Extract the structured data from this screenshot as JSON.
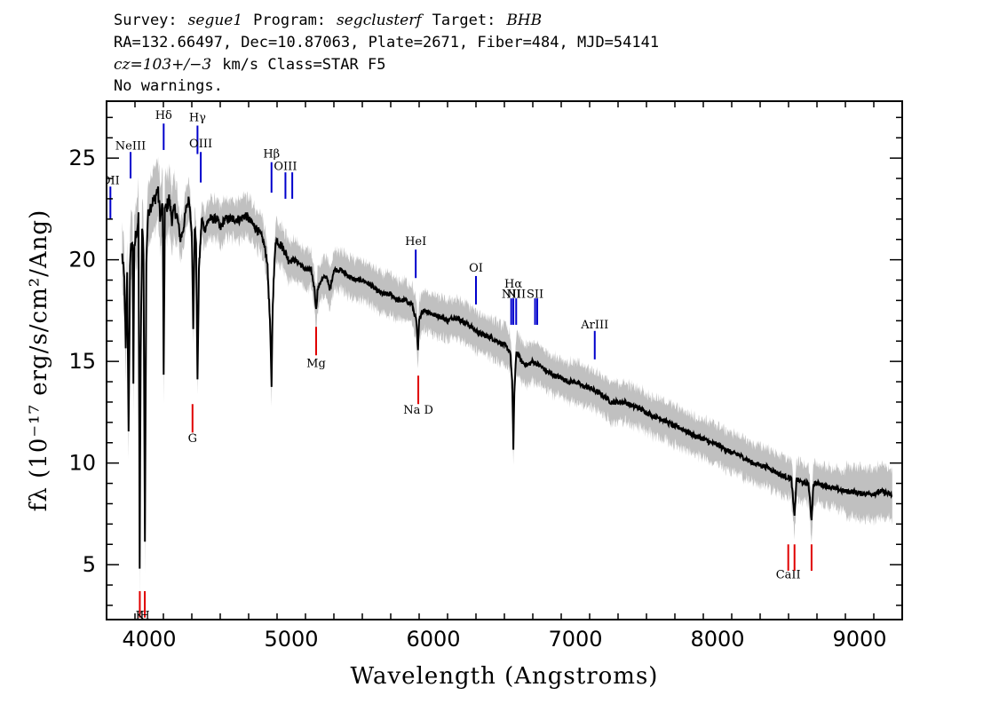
{
  "header": {
    "line1": {
      "survey_label": "Survey:",
      "survey": "segue1",
      "program_label": "Program:",
      "program": "segclusterf",
      "target_label": "Target:",
      "target": "BHB"
    },
    "line2": "RA=132.66497, Dec=10.87063, Plate=2671, Fiber=484, MJD=54141",
    "line3": {
      "redshift": "cz=103+/−3",
      "rest": "km/s Class=STAR F5"
    },
    "line4": "No warnings."
  },
  "chart_data": {
    "type": "line",
    "xlabel": "Wavelength (Angstroms)",
    "ylabel": "fλ (10⁻¹⁷ erg/s/cm²/Ang)",
    "xlim": [
      3700,
      9300
    ],
    "ylim": [
      2.3,
      27.8
    ],
    "x_ticks": [
      4000,
      5000,
      6000,
      7000,
      8000,
      9000
    ],
    "y_ticks": [
      5,
      10,
      15,
      20,
      25
    ],
    "colors": {
      "spectrum": "#000000",
      "error_band": "#c0c0c0",
      "emission": "#0000cc",
      "absorption": "#e00000"
    },
    "series": [
      {
        "points": [
          [
            3810,
            20.2
          ],
          [
            3825,
            19.0
          ],
          [
            3835,
            15.5
          ],
          [
            3845,
            19.5
          ],
          [
            3855,
            11.5
          ],
          [
            3865,
            19.5
          ],
          [
            3875,
            21.0
          ],
          [
            3883,
            20.5
          ],
          [
            3889,
            14.0
          ],
          [
            3895,
            20.5
          ],
          [
            3905,
            21.2
          ],
          [
            3915,
            21.5
          ],
          [
            3925,
            22.0
          ],
          [
            3933,
            5.0
          ],
          [
            3940,
            15.0
          ],
          [
            3950,
            21.5
          ],
          [
            3960,
            20.5
          ],
          [
            3970,
            6.0
          ],
          [
            3980,
            20.0
          ],
          [
            3990,
            22.0
          ],
          [
            4000,
            22.5
          ],
          [
            4020,
            22.8
          ],
          [
            4040,
            23.0
          ],
          [
            4060,
            23.5
          ],
          [
            4080,
            22.0
          ],
          [
            4095,
            22.8
          ],
          [
            4102,
            14.0
          ],
          [
            4110,
            22.5
          ],
          [
            4120,
            22.5
          ],
          [
            4140,
            23.0
          ],
          [
            4160,
            22.0
          ],
          [
            4180,
            22.5
          ],
          [
            4200,
            22.0
          ],
          [
            4220,
            21.0
          ],
          [
            4240,
            21.5
          ],
          [
            4260,
            22.5
          ],
          [
            4280,
            23.0
          ],
          [
            4300,
            21.5
          ],
          [
            4310,
            16.5
          ],
          [
            4320,
            21.5
          ],
          [
            4330,
            21.0
          ],
          [
            4340,
            13.9
          ],
          [
            4350,
            19.5
          ],
          [
            4370,
            22.0
          ],
          [
            4390,
            21.5
          ],
          [
            4420,
            22.0
          ],
          [
            4450,
            22.0
          ],
          [
            4480,
            22.0
          ],
          [
            4500,
            21.5
          ],
          [
            4530,
            22.0
          ],
          [
            4560,
            22.0
          ],
          [
            4600,
            22.0
          ],
          [
            4640,
            22.0
          ],
          [
            4680,
            22.2
          ],
          [
            4720,
            21.8
          ],
          [
            4760,
            21.5
          ],
          [
            4800,
            21.0
          ],
          [
            4830,
            20.0
          ],
          [
            4850,
            17.0
          ],
          [
            4861,
            13.8
          ],
          [
            4870,
            18.0
          ],
          [
            4890,
            21.0
          ],
          [
            4920,
            20.8
          ],
          [
            4950,
            20.5
          ],
          [
            4980,
            20.0
          ],
          [
            5020,
            20.0
          ],
          [
            5060,
            19.8
          ],
          [
            5100,
            19.5
          ],
          [
            5140,
            19.5
          ],
          [
            5165,
            18.5
          ],
          [
            5175,
            17.5
          ],
          [
            5185,
            18.5
          ],
          [
            5210,
            19.0
          ],
          [
            5250,
            19.2
          ],
          [
            5270,
            18.5
          ],
          [
            5300,
            19.5
          ],
          [
            5350,
            19.5
          ],
          [
            5400,
            19.2
          ],
          [
            5450,
            19.0
          ],
          [
            5500,
            19.0
          ],
          [
            5550,
            18.8
          ],
          [
            5600,
            18.5
          ],
          [
            5650,
            18.3
          ],
          [
            5700,
            18.3
          ],
          [
            5750,
            18.0
          ],
          [
            5800,
            18.0
          ],
          [
            5850,
            17.8
          ],
          [
            5880,
            17.0
          ],
          [
            5892,
            15.5
          ],
          [
            5900,
            17.0
          ],
          [
            5920,
            17.5
          ],
          [
            5950,
            17.5
          ],
          [
            6000,
            17.3
          ],
          [
            6050,
            17.2
          ],
          [
            6100,
            17.0
          ],
          [
            6150,
            17.2
          ],
          [
            6200,
            17.0
          ],
          [
            6250,
            16.8
          ],
          [
            6300,
            16.5
          ],
          [
            6350,
            16.3
          ],
          [
            6400,
            16.2
          ],
          [
            6450,
            16.0
          ],
          [
            6500,
            15.8
          ],
          [
            6540,
            15.5
          ],
          [
            6555,
            14.0
          ],
          [
            6563,
            10.7
          ],
          [
            6570,
            13.5
          ],
          [
            6585,
            15.5
          ],
          [
            6620,
            15.0
          ],
          [
            6660,
            14.8
          ],
          [
            6700,
            15.0
          ],
          [
            6750,
            14.8
          ],
          [
            6800,
            14.5
          ],
          [
            6850,
            14.3
          ],
          [
            6900,
            14.2
          ],
          [
            6950,
            14.0
          ],
          [
            7000,
            14.0
          ],
          [
            7050,
            13.8
          ],
          [
            7100,
            13.7
          ],
          [
            7150,
            13.5
          ],
          [
            7200,
            13.3
          ],
          [
            7250,
            13.0
          ],
          [
            7300,
            13.0
          ],
          [
            7350,
            13.0
          ],
          [
            7400,
            12.8
          ],
          [
            7450,
            12.7
          ],
          [
            7500,
            12.5
          ],
          [
            7550,
            12.3
          ],
          [
            7600,
            12.2
          ],
          [
            7650,
            12.0
          ],
          [
            7700,
            11.8
          ],
          [
            7750,
            11.7
          ],
          [
            7800,
            11.5
          ],
          [
            7850,
            11.3
          ],
          [
            7900,
            11.2
          ],
          [
            7950,
            11.0
          ],
          [
            8000,
            10.9
          ],
          [
            8050,
            10.7
          ],
          [
            8100,
            10.5
          ],
          [
            8150,
            10.4
          ],
          [
            8200,
            10.2
          ],
          [
            8250,
            10.0
          ],
          [
            8300,
            9.9
          ],
          [
            8350,
            9.8
          ],
          [
            8400,
            9.6
          ],
          [
            8450,
            9.4
          ],
          [
            8490,
            9.3
          ],
          [
            8500,
            9.3
          ],
          [
            8520,
            9.2
          ],
          [
            8542,
            7.3
          ],
          [
            8555,
            9.2
          ],
          [
            8580,
            9.1
          ],
          [
            8610,
            9.0
          ],
          [
            8640,
            9.0
          ],
          [
            8662,
            7.2
          ],
          [
            8675,
            9.0
          ],
          [
            8700,
            9.0
          ],
          [
            8750,
            8.9
          ],
          [
            8800,
            8.8
          ],
          [
            8850,
            8.7
          ],
          [
            8900,
            8.6
          ],
          [
            8950,
            8.6
          ],
          [
            9000,
            8.5
          ],
          [
            9050,
            8.5
          ],
          [
            9100,
            8.5
          ],
          [
            9150,
            8.6
          ],
          [
            9200,
            8.5
          ],
          [
            9230,
            8.4
          ]
        ]
      }
    ],
    "emission_lines": [
      {
        "label": "OII",
        "wavelength": 3727,
        "y_top": 23.6,
        "y_bottom": 22.0,
        "label_y": 23.9
      },
      {
        "label": "NeIII",
        "wavelength": 3869,
        "y_top": 25.3,
        "y_bottom": 24.0,
        "label_y": 25.6
      },
      {
        "label": "Hδ",
        "wavelength": 4102,
        "y_top": 26.7,
        "y_bottom": 25.4,
        "label_y": 27.1
      },
      {
        "label": "Hγ",
        "wavelength": 4340,
        "y_top": 26.6,
        "y_bottom": 25.2,
        "label_y": 27.0
      },
      {
        "label": "OIII",
        "wavelength": 4363,
        "y_top": 25.3,
        "y_bottom": 23.8,
        "label_y": 25.7
      },
      {
        "label": "Hβ",
        "wavelength": 4861,
        "y_top": 24.8,
        "y_bottom": 23.3,
        "label_y": 25.2
      },
      {
        "label": "OIII",
        "wavelength": 4959,
        "y_top": 24.3,
        "y_bottom": 23.0,
        "label_y": 24.6
      },
      {
        "label": "",
        "wavelength": 5007,
        "y_top": 24.3,
        "y_bottom": 23.0,
        "label_y": 24.6
      },
      {
        "label": "HeI",
        "wavelength": 5876,
        "y_top": 20.5,
        "y_bottom": 19.1,
        "label_y": 20.9
      },
      {
        "label": "OI",
        "wavelength": 6300,
        "y_top": 19.2,
        "y_bottom": 17.8,
        "label_y": 19.6
      },
      {
        "label": "NII",
        "wavelength": 6548,
        "y_top": 18.1,
        "y_bottom": 16.8,
        "label_y": 18.3
      },
      {
        "label": "Hα",
        "wavelength": 6563,
        "y_top": 18.1,
        "y_bottom": 16.8,
        "label_y": 18.8
      },
      {
        "label": "NII",
        "wavelength": 6583,
        "y_top": 18.1,
        "y_bottom": 16.8,
        "label_y": 18.3
      },
      {
        "label": "SII",
        "wavelength": 6716,
        "y_top": 18.1,
        "y_bottom": 16.8,
        "label_y": 18.3
      },
      {
        "label": "",
        "wavelength": 6731,
        "y_top": 18.1,
        "y_bottom": 16.8,
        "label_y": 18.3
      },
      {
        "label": "ArIII",
        "wavelength": 7136,
        "y_top": 16.5,
        "y_bottom": 15.1,
        "label_y": 16.8
      }
    ],
    "absorption_lines": [
      {
        "label": "K",
        "wavelength": 3934,
        "y_top": 3.7,
        "y_bottom": 2.4,
        "label_y": 2.5
      },
      {
        "label": "H",
        "wavelength": 3969,
        "y_top": 3.7,
        "y_bottom": 2.4,
        "label_y": 2.5
      },
      {
        "label": "G",
        "wavelength": 4305,
        "y_top": 12.9,
        "y_bottom": 11.5,
        "label_y": 11.2
      },
      {
        "label": "Mg",
        "wavelength": 5175,
        "y_top": 16.7,
        "y_bottom": 15.3,
        "label_y": 14.9
      },
      {
        "label": "Na D",
        "wavelength": 5894,
        "y_top": 14.3,
        "y_bottom": 12.9,
        "label_y": 12.6
      },
      {
        "label": "CaII",
        "wavelength": 8498,
        "y_top": 6.0,
        "y_bottom": 4.7,
        "label_y": 4.5
      },
      {
        "label": "",
        "wavelength": 8542,
        "y_top": 6.0,
        "y_bottom": 4.7,
        "label_y": 4.5
      },
      {
        "label": "",
        "wavelength": 8662,
        "y_top": 6.0,
        "y_bottom": 4.7,
        "label_y": 4.5
      }
    ]
  }
}
